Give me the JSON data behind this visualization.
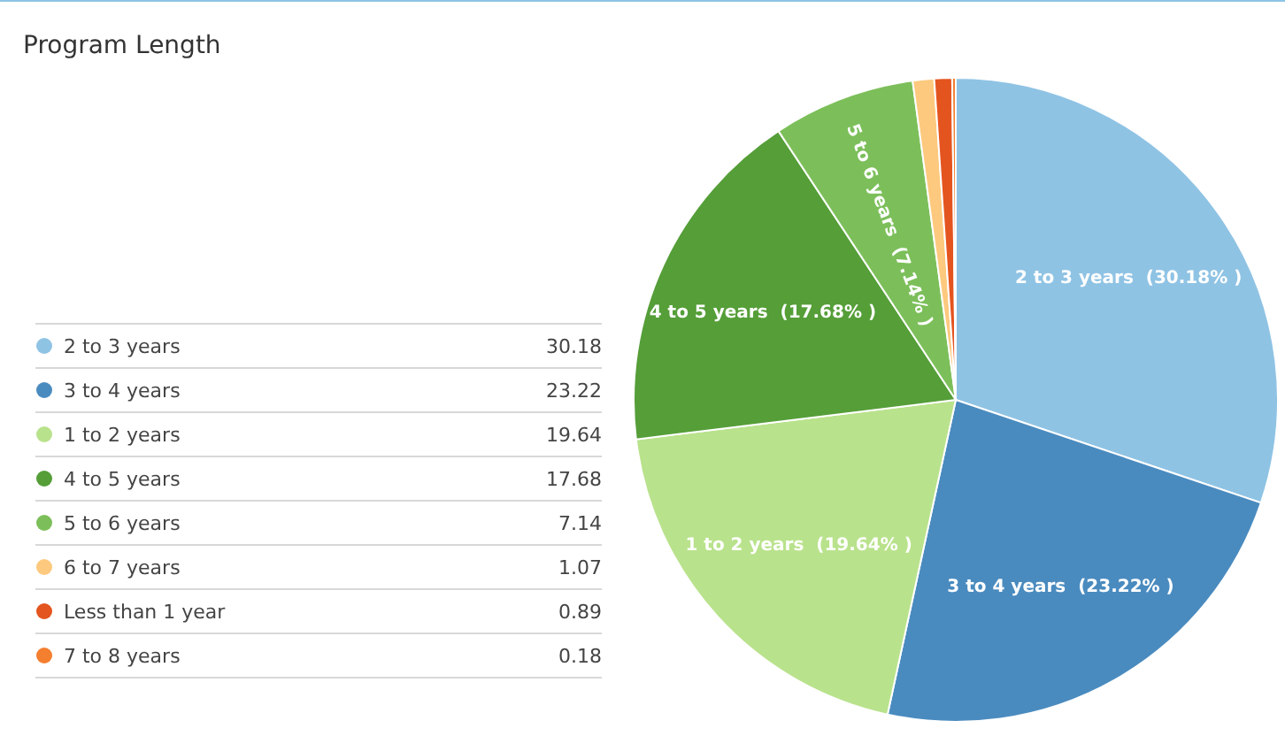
{
  "chart_data": {
    "type": "pie",
    "title": "Program Length",
    "categories": [
      "2 to 3 years",
      "3 to 4 years",
      "1 to 2 years",
      "4 to 5 years",
      "5 to 6 years",
      "6 to 7 years",
      "Less than 1 year",
      "7 to 8 years"
    ],
    "values": [
      30.18,
      23.22,
      19.64,
      17.68,
      7.14,
      1.07,
      0.89,
      0.18
    ],
    "colors": [
      "#8fc3e4",
      "#4a8bbf",
      "#b9e28c",
      "#559e38",
      "#7cbf5a",
      "#fdc97e",
      "#e4541f",
      "#f47f2f"
    ],
    "annotations": [
      {
        "text": "2 to 3 years  (30.18% )",
        "x": "2 to 3 years"
      },
      {
        "text": "3 to 4 years  (23.22% )",
        "x": "3 to 4 years"
      },
      {
        "text": "1 to 2 years  (19.64% )",
        "x": "1 to 2 years"
      },
      {
        "text": "4 to 5 years  (17.68% )",
        "x": "4 to 5 years"
      },
      {
        "text": "5 to 6 years  (7.14% )",
        "x": "5 to 6 years"
      }
    ],
    "legend": "left",
    "data_labels": true
  }
}
